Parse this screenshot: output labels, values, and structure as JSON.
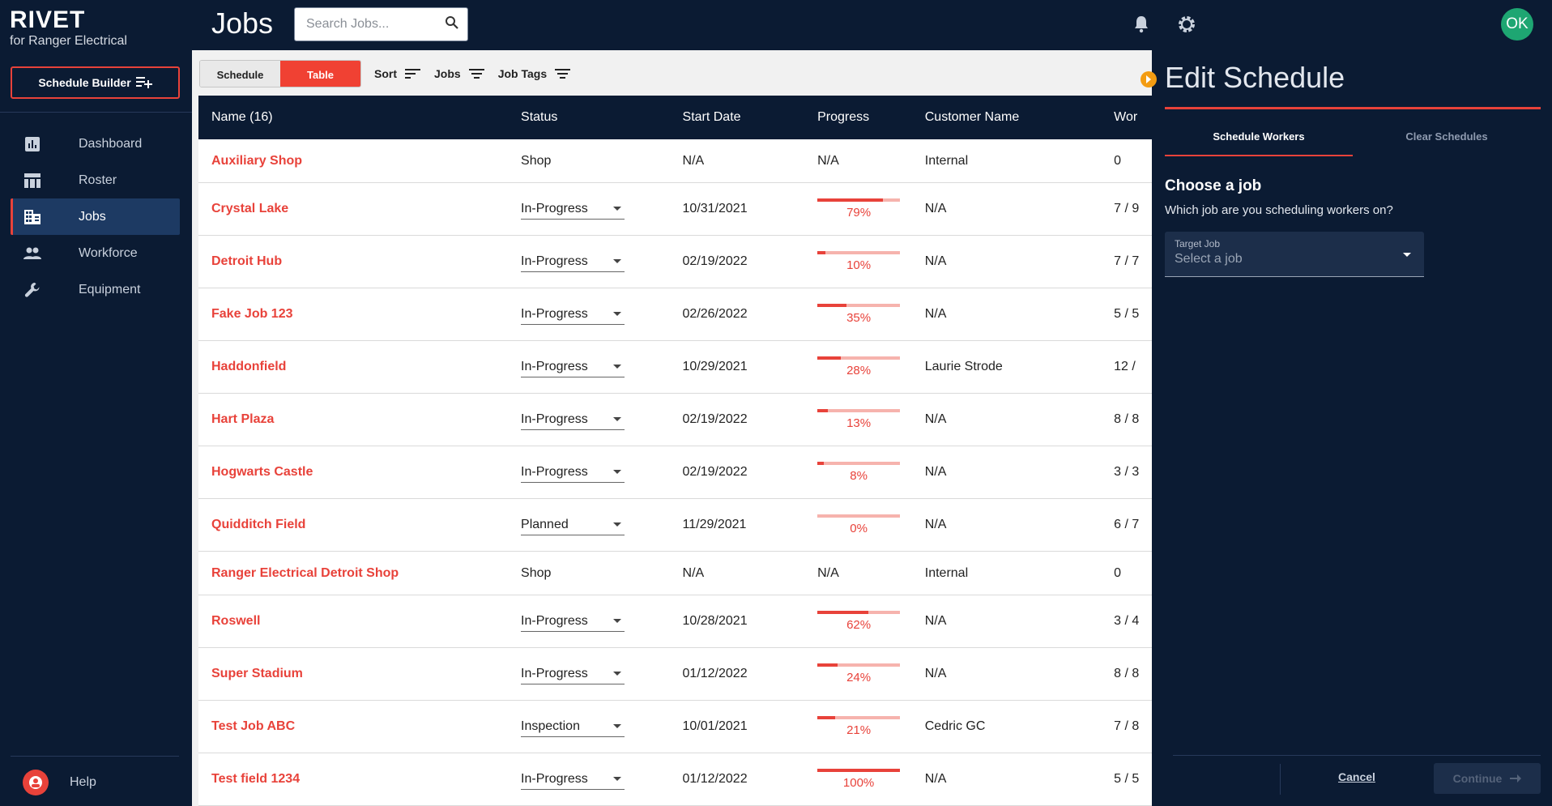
{
  "brand": {
    "name": "RIVET",
    "sub": "for Ranger Electrical"
  },
  "sidebar": {
    "schedule_builder_label": "Schedule Builder",
    "items": [
      {
        "label": "Dashboard",
        "icon": "dashboard-icon"
      },
      {
        "label": "Roster",
        "icon": "roster-icon"
      },
      {
        "label": "Jobs",
        "icon": "jobs-icon",
        "active": true
      },
      {
        "label": "Workforce",
        "icon": "workforce-icon"
      },
      {
        "label": "Equipment",
        "icon": "wrench-icon"
      }
    ],
    "help_label": "Help"
  },
  "header": {
    "title": "Jobs",
    "search_placeholder": "Search Jobs...",
    "avatar_initials": "OK"
  },
  "toolbar": {
    "schedule_label": "Schedule",
    "table_label": "Table",
    "sort_label": "Sort",
    "jobs_label": "Jobs",
    "job_tags_label": "Job Tags"
  },
  "table": {
    "columns": [
      "Name (16)",
      "Status",
      "Start Date",
      "Progress",
      "Customer Name",
      "Wor"
    ],
    "rows": [
      {
        "name": "Auxiliary Shop",
        "status": "Shop",
        "select": false,
        "start": "N/A",
        "progress": null,
        "progress_text": "N/A",
        "customer": "Internal",
        "workers": "0"
      },
      {
        "name": "Crystal Lake",
        "status": "In-Progress",
        "select": true,
        "start": "10/31/2021",
        "progress": 79,
        "progress_text": "79%",
        "customer": "N/A",
        "workers": "7 / 9"
      },
      {
        "name": "Detroit Hub",
        "status": "In-Progress",
        "select": true,
        "start": "02/19/2022",
        "progress": 10,
        "progress_text": "10%",
        "customer": "N/A",
        "workers": "7 / 7"
      },
      {
        "name": "Fake Job 123",
        "status": "In-Progress",
        "select": true,
        "start": "02/26/2022",
        "progress": 35,
        "progress_text": "35%",
        "customer": "N/A",
        "workers": "5 / 5"
      },
      {
        "name": "Haddonfield",
        "status": "In-Progress",
        "select": true,
        "start": "10/29/2021",
        "progress": 28,
        "progress_text": "28%",
        "customer": "Laurie Strode",
        "workers": "12 /"
      },
      {
        "name": "Hart Plaza",
        "status": "In-Progress",
        "select": true,
        "start": "02/19/2022",
        "progress": 13,
        "progress_text": "13%",
        "customer": "N/A",
        "workers": "8 / 8"
      },
      {
        "name": "Hogwarts Castle",
        "status": "In-Progress",
        "select": true,
        "start": "02/19/2022",
        "progress": 8,
        "progress_text": "8%",
        "customer": "N/A",
        "workers": "3 / 3"
      },
      {
        "name": "Quidditch Field",
        "status": "Planned",
        "select": true,
        "start": "11/29/2021",
        "progress": 0,
        "progress_text": "0%",
        "customer": "N/A",
        "workers": "6 / 7"
      },
      {
        "name": "Ranger Electrical Detroit Shop",
        "status": "Shop",
        "select": false,
        "start": "N/A",
        "progress": null,
        "progress_text": "N/A",
        "customer": "Internal",
        "workers": "0"
      },
      {
        "name": "Roswell",
        "status": "In-Progress",
        "select": true,
        "start": "10/28/2021",
        "progress": 62,
        "progress_text": "62%",
        "customer": "N/A",
        "workers": "3 / 4"
      },
      {
        "name": "Super Stadium",
        "status": "In-Progress",
        "select": true,
        "start": "01/12/2022",
        "progress": 24,
        "progress_text": "24%",
        "customer": "N/A",
        "workers": "8 / 8"
      },
      {
        "name": "Test Job ABC",
        "status": "Inspection",
        "select": true,
        "start": "10/01/2021",
        "progress": 21,
        "progress_text": "21%",
        "customer": "Cedric GC",
        "workers": "7 / 8"
      },
      {
        "name": "Test field 1234",
        "status": "In-Progress",
        "select": true,
        "start": "01/12/2022",
        "progress": 100,
        "progress_text": "100%",
        "customer": "N/A",
        "workers": "5 / 5"
      }
    ]
  },
  "panel": {
    "title": "Edit Schedule",
    "tab_schedule_workers": "Schedule Workers",
    "tab_clear_schedules": "Clear Schedules",
    "heading": "Choose a job",
    "subheading": "Which job are you scheduling workers on?",
    "select_label": "Target Job",
    "select_placeholder": "Select a job",
    "cancel_label": "Cancel",
    "continue_label": "Continue"
  },
  "colors": {
    "navy": "#0b1b33",
    "accent": "#e8423a",
    "avatar": "#1ea672"
  }
}
